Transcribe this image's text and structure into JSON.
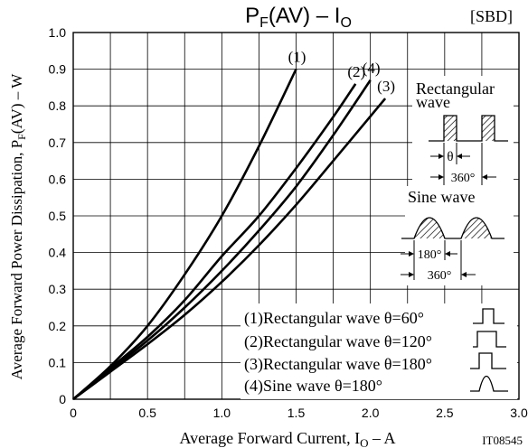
{
  "chart_data": {
    "type": "line",
    "title": {
      "main": "P",
      "main_sub": "F",
      "main_rest": "(AV)  –  I",
      "main_sub2": "O"
    },
    "tag": "[SBD]",
    "ylabel": {
      "main": "Average Forward Power Dissipation, P",
      "sub": "F",
      "rest": "(AV)  –  W"
    },
    "xlabel": {
      "main": "Average Forward Current, I",
      "sub": "O",
      "rest": "  –  A"
    },
    "code": "IT08545",
    "xlim": [
      0,
      3.0
    ],
    "ylim": [
      0,
      1.0
    ],
    "x_ticks": [
      "0",
      "0.5",
      "1.0",
      "1.5",
      "2.0",
      "2.5",
      "3.0"
    ],
    "y_ticks": [
      "0",
      "0.1",
      "0.2",
      "0.3",
      "0.4",
      "0.5",
      "0.6",
      "0.7",
      "0.8",
      "0.9",
      "1.0"
    ],
    "grid": true,
    "series": [
      {
        "name": "(1)",
        "x": [
          0,
          0.25,
          0.5,
          0.75,
          1.0,
          1.25,
          1.5
        ],
        "y": [
          0,
          0.09,
          0.2,
          0.34,
          0.5,
          0.69,
          0.9
        ]
      },
      {
        "name": "(2)",
        "x": [
          0,
          0.25,
          0.5,
          0.75,
          1.0,
          1.25,
          1.5,
          1.75,
          1.9
        ],
        "y": [
          0,
          0.085,
          0.17,
          0.27,
          0.39,
          0.5,
          0.63,
          0.77,
          0.86
        ]
      },
      {
        "name": "(4)",
        "x": [
          0,
          0.25,
          0.5,
          0.75,
          1.0,
          1.25,
          1.5,
          1.75,
          2.0
        ],
        "y": [
          0,
          0.08,
          0.16,
          0.25,
          0.35,
          0.46,
          0.58,
          0.72,
          0.87
        ]
      },
      {
        "name": "(3)",
        "x": [
          0,
          0.25,
          0.5,
          0.75,
          1.0,
          1.25,
          1.5,
          1.75,
          2.1
        ],
        "y": [
          0,
          0.075,
          0.15,
          0.23,
          0.32,
          0.42,
          0.53,
          0.65,
          0.82
        ]
      }
    ],
    "curve_order_labels": [
      "(1)",
      "(2)",
      "(4)",
      "(3)"
    ],
    "insets": {
      "rectangular_title": "Rectangular",
      "rectangular_title2": "wave",
      "theta_label": "θ",
      "rect_period": "360°",
      "sine_title": "Sine wave",
      "sine_half": "180°",
      "sine_period": "360°"
    },
    "legend": [
      "(1)Rectangular wave θ=60°",
      "(2)Rectangular wave θ=120°",
      "(3)Rectangular wave θ=180°",
      "(4)Sine wave θ=180°"
    ]
  }
}
